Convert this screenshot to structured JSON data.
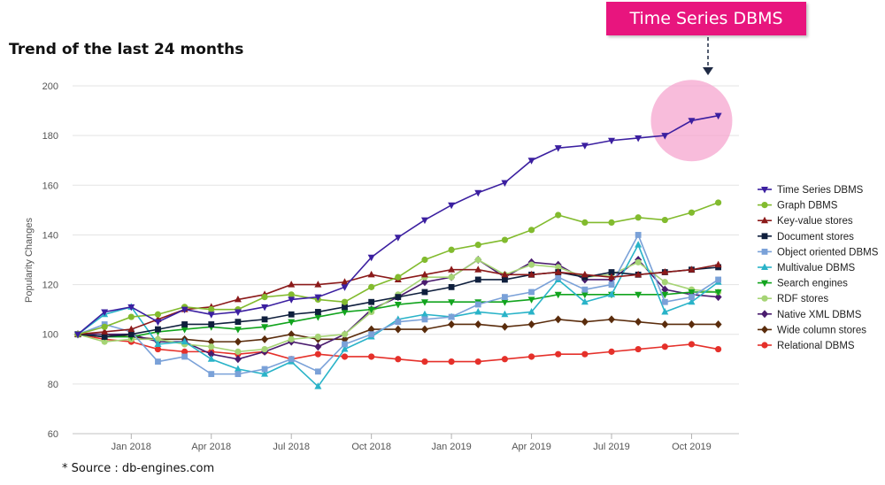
{
  "chart_data": {
    "type": "line",
    "title": "Trend of the last 24 months",
    "ylabel": "Popularity Changes",
    "xlabel": "",
    "ylim": [
      60,
      200
    ],
    "yticks": [
      60,
      80,
      100,
      120,
      140,
      160,
      180,
      200
    ],
    "xticks": [
      {
        "label": "Jan 2018",
        "index": 2
      },
      {
        "label": "Apr 2018",
        "index": 5
      },
      {
        "label": "Jul 2018",
        "index": 8
      },
      {
        "label": "Oct 2018",
        "index": 11
      },
      {
        "label": "Jan 2019",
        "index": 14
      },
      {
        "label": "Apr 2019",
        "index": 17
      },
      {
        "label": "Jul 2019",
        "index": 20
      },
      {
        "label": "Oct 2019",
        "index": 23
      }
    ],
    "x": [
      "Nov 2017",
      "Dec 2017",
      "Jan 2018",
      "Feb 2018",
      "Mar 2018",
      "Apr 2018",
      "May 2018",
      "Jun 2018",
      "Jul 2018",
      "Aug 2018",
      "Sep 2018",
      "Oct 2018",
      "Nov 2018",
      "Dec 2018",
      "Jan 2019",
      "Feb 2019",
      "Mar 2019",
      "Apr 2019",
      "May 2019",
      "Jun 2019",
      "Jul 2019",
      "Aug 2019",
      "Sep 2019",
      "Oct 2019",
      "Nov 2019"
    ],
    "grid": true,
    "legend_position": "right",
    "annotation": "Time Series DBMS",
    "source": "* Source : db-engines.com",
    "series": [
      {
        "name": "Time Series DBMS",
        "color": "#3b1fa0",
        "marker": "triangle-down",
        "values": [
          100,
          109,
          111,
          105,
          110,
          108,
          109,
          111,
          114,
          115,
          119,
          131,
          139,
          146,
          152,
          157,
          161,
          170,
          175,
          176,
          178,
          179,
          180,
          186,
          188
        ]
      },
      {
        "name": "Graph DBMS",
        "color": "#82bb2e",
        "marker": "circle",
        "values": [
          100,
          103,
          107,
          108,
          111,
          110,
          110,
          115,
          116,
          114,
          113,
          119,
          123,
          130,
          134,
          136,
          138,
          142,
          148,
          145,
          145,
          147,
          146,
          149,
          153
        ]
      },
      {
        "name": "Key-value stores",
        "color": "#8b1a1a",
        "marker": "triangle-up",
        "values": [
          100,
          101,
          102,
          106,
          110,
          111,
          114,
          116,
          120,
          120,
          121,
          124,
          122,
          124,
          126,
          126,
          124,
          124,
          125,
          124,
          123,
          124,
          125,
          126,
          128
        ]
      },
      {
        "name": "Document stores",
        "color": "#0f1f3d",
        "marker": "square",
        "values": [
          100,
          99,
          100,
          102,
          104,
          104,
          105,
          106,
          108,
          109,
          111,
          113,
          115,
          117,
          119,
          122,
          122,
          124,
          125,
          123,
          125,
          124,
          125,
          126,
          127
        ]
      },
      {
        "name": "Object oriented DBMS",
        "color": "#7aa1d8",
        "marker": "square",
        "values": [
          100,
          104,
          101,
          89,
          91,
          84,
          84,
          86,
          90,
          85,
          96,
          100,
          105,
          106,
          107,
          112,
          115,
          117,
          123,
          118,
          120,
          140,
          113,
          115,
          122
        ]
      },
      {
        "name": "Multivalue DBMS",
        "color": "#29b3c8",
        "marker": "triangle-up",
        "values": [
          100,
          108,
          111,
          96,
          97,
          90,
          86,
          84,
          89,
          79,
          94,
          99,
          106,
          108,
          107,
          109,
          108,
          109,
          122,
          113,
          116,
          136,
          109,
          113,
          121
        ]
      },
      {
        "name": "Search engines",
        "color": "#12a41e",
        "marker": "triangle-down",
        "values": [
          100,
          99,
          99,
          101,
          102,
          103,
          102,
          103,
          105,
          107,
          109,
          110,
          112,
          113,
          113,
          113,
          113,
          114,
          116,
          116,
          116,
          116,
          116,
          117,
          117
        ]
      },
      {
        "name": "RDF stores",
        "color": "#a6d475",
        "marker": "circle",
        "values": [
          100,
          97,
          98,
          98,
          96,
          95,
          93,
          94,
          98,
          99,
          100,
          109,
          116,
          123,
          123,
          130,
          124,
          128,
          127,
          123,
          124,
          129,
          121,
          118,
          117
        ]
      },
      {
        "name": "Native XML DBMS",
        "color": "#4a1c6e",
        "marker": "diamond",
        "values": [
          100,
          100,
          100,
          97,
          97,
          92,
          90,
          93,
          97,
          95,
          100,
          110,
          115,
          121,
          123,
          130,
          123,
          129,
          128,
          122,
          122,
          130,
          118,
          116,
          115
        ]
      },
      {
        "name": "Wide column stores",
        "color": "#5a2c0c",
        "marker": "diamond",
        "values": [
          100,
          100,
          99,
          98,
          98,
          97,
          97,
          98,
          100,
          98,
          98,
          102,
          102,
          102,
          104,
          104,
          103,
          104,
          106,
          105,
          106,
          105,
          104,
          104,
          104
        ]
      },
      {
        "name": "Relational DBMS",
        "color": "#e5302a",
        "marker": "circle",
        "values": [
          100,
          98,
          97,
          94,
          93,
          93,
          92,
          93,
          90,
          92,
          91,
          91,
          90,
          89,
          89,
          89,
          90,
          91,
          92,
          92,
          93,
          94,
          95,
          96,
          94
        ]
      }
    ]
  }
}
